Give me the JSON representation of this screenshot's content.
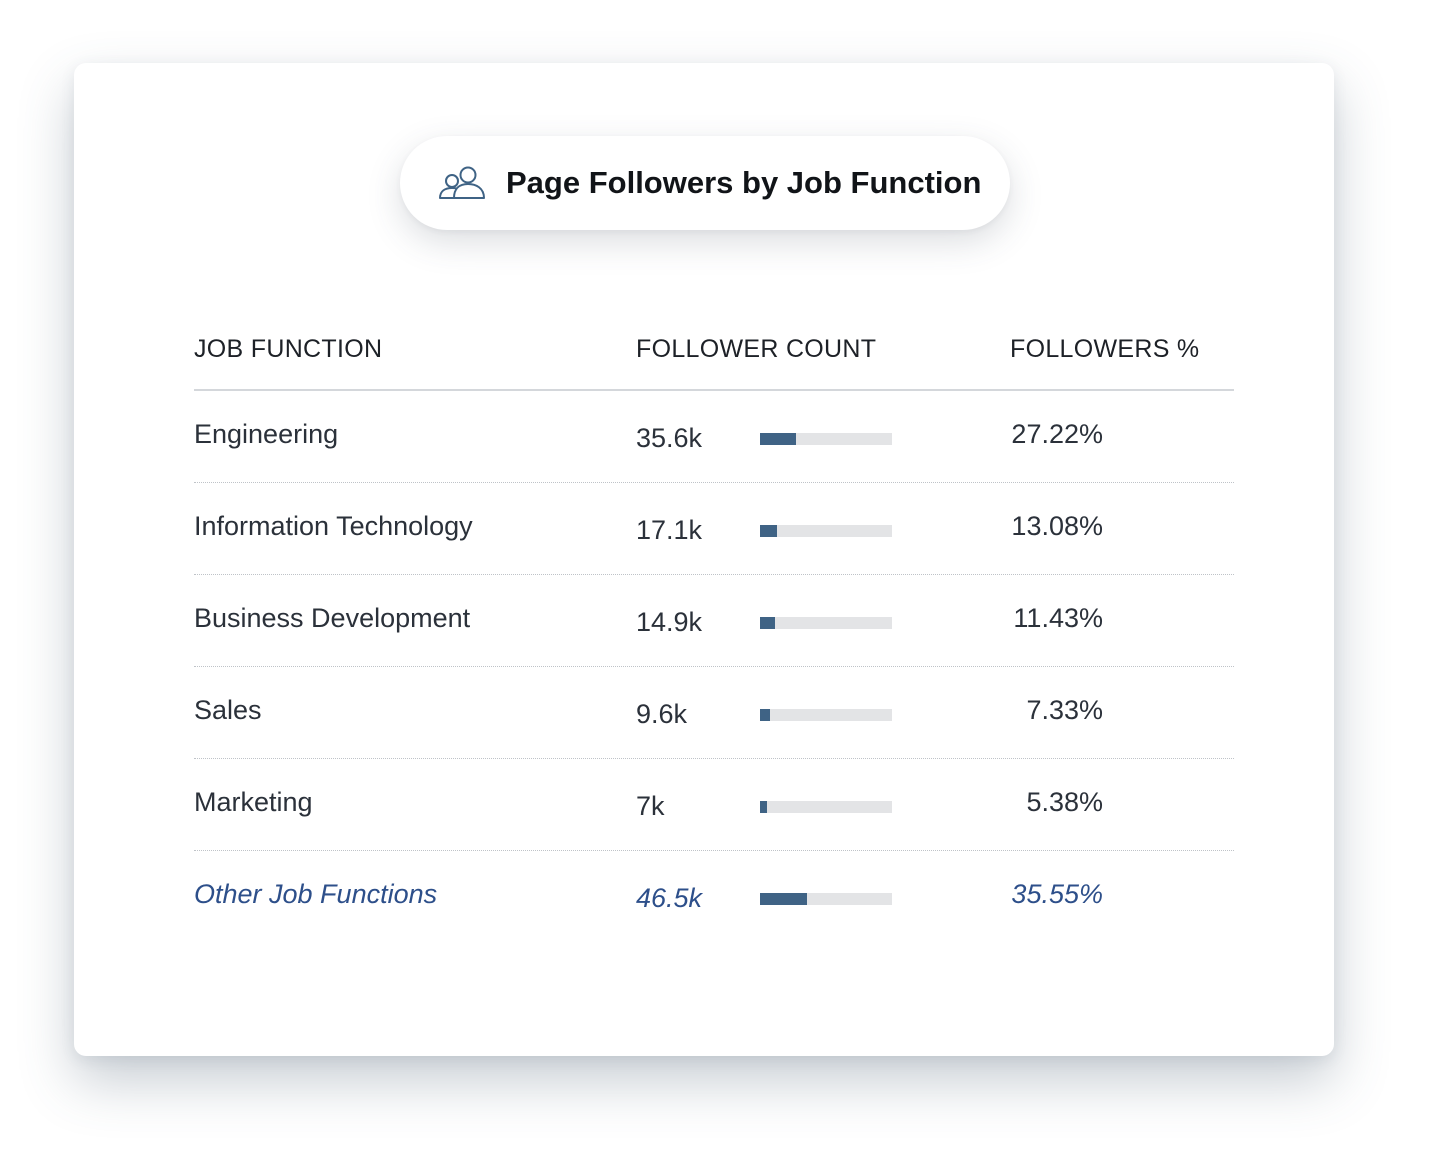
{
  "title": "Page Followers by Job Function",
  "icon": "people-icon",
  "columns": {
    "job_function": "JOB FUNCTION",
    "follower_count": "FOLLOWER COUNT",
    "followers_pct": "FOLLOWERS %"
  },
  "rows": [
    {
      "name": "Engineering",
      "count": "35.6k",
      "pct": "27.22%",
      "share": 0.2722,
      "other": false
    },
    {
      "name": "Information Technology",
      "count": "17.1k",
      "pct": "13.08%",
      "share": 0.1308,
      "other": false
    },
    {
      "name": "Business Development",
      "count": "14.9k",
      "pct": "11.43%",
      "share": 0.1143,
      "other": false
    },
    {
      "name": "Sales",
      "count": "9.6k",
      "pct": "7.33%",
      "share": 0.0733,
      "other": false
    },
    {
      "name": "Marketing",
      "count": "7k",
      "pct": "5.38%",
      "share": 0.0538,
      "other": false
    },
    {
      "name": "Other Job Functions",
      "count": "46.5k",
      "pct": "35.55%",
      "share": 0.3555,
      "other": true
    }
  ],
  "colors": {
    "bar_fill": "#3f6385",
    "bar_track": "#e3e4e6",
    "other_text": "#2d4f8a"
  }
}
